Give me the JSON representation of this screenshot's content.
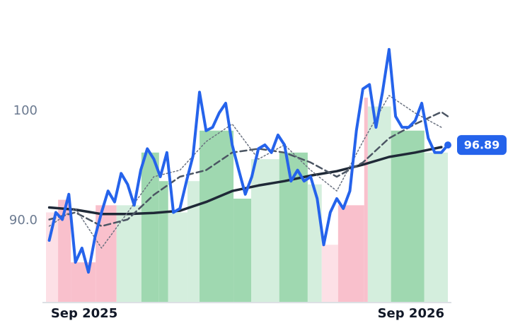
{
  "chart_data": {
    "type": "line",
    "xlim": [
      2025.55,
      2026.78
    ],
    "ylim": [
      82.6,
      110.1
    ],
    "xticks": [
      {
        "value": 2025.667,
        "label": "Sep 2025"
      },
      {
        "value": 2026.667,
        "label": "Sep 2026"
      }
    ],
    "yticks": [
      {
        "value": 90,
        "label": "90.0"
      },
      100
    ],
    "bands": {
      "bins": [
        2025.55,
        2025.587,
        2025.626,
        2025.702,
        2025.766,
        2025.842,
        2025.896,
        2025.924,
        2025.983,
        2026.02,
        2026.124,
        2026.178,
        2026.264,
        2026.351,
        2026.394,
        2026.444,
        2026.524,
        2026.535,
        2026.606,
        2026.708,
        2026.78
      ],
      "values": [
        90.75,
        91.9,
        86.2,
        91.4,
        91.4,
        96.2,
        93.6,
        90.75,
        93.6,
        98.2,
        92.0,
        95.6,
        96.2,
        93.3,
        87.8,
        91.4,
        101.2,
        100.4,
        98.2,
        96.2
      ],
      "colors": [
        "#fde0e6",
        "#f9c0cc",
        "#f9c0cc",
        "#f9c0cc",
        "#d4eedd",
        "#9fd8b0",
        "#9fd8b0",
        "#d4eedd",
        "#d4eedd",
        "#9fd8b0",
        "#9fd8b0",
        "#d4eedd",
        "#9fd8b0",
        "#d4eedd",
        "#fde0e6",
        "#f9c0cc",
        "#f9c0cc",
        "#d4eedd",
        "#9fd8b0",
        "#d4eedd"
      ]
    },
    "series": [
      {
        "color": "#1f2937",
        "style": "solid-thin",
        "x": [
          2025.56,
          2025.64,
          2025.72,
          2025.8,
          2025.88,
          2025.96,
          2026.04,
          2026.12,
          2026.2,
          2026.28,
          2026.36,
          2026.44,
          2026.52,
          2026.6,
          2026.68,
          2026.76
        ],
        "values": [
          91.2,
          91.0,
          90.6,
          90.6,
          90.7,
          90.9,
          91.7,
          92.7,
          93.2,
          93.6,
          94.1,
          94.5,
          95.1,
          95.8,
          96.2,
          96.7
        ]
      },
      {
        "color": "#4b5563",
        "style": "dashed",
        "x": [
          2025.56,
          2025.64,
          2025.72,
          2025.8,
          2025.88,
          2025.96,
          2026.04,
          2026.12,
          2026.2,
          2026.28,
          2026.36,
          2026.44,
          2026.52,
          2026.6,
          2026.68,
          2026.76,
          2026.78
        ],
        "values": [
          90.1,
          90.75,
          89.5,
          90.1,
          92.35,
          94.0,
          94.6,
          96.2,
          96.55,
          96.2,
          95.3,
          94.0,
          95.3,
          97.5,
          98.8,
          99.9,
          99.5
        ]
      },
      {
        "color": "#6b7280",
        "style": "dotted",
        "x": [
          2025.56,
          2025.64,
          2025.72,
          2025.8,
          2025.88,
          2025.96,
          2026.04,
          2026.12,
          2026.2,
          2026.28,
          2026.36,
          2026.44,
          2026.52,
          2026.6,
          2026.68,
          2026.76
        ],
        "values": [
          89.5,
          91.1,
          87.5,
          90.75,
          94.0,
          94.6,
          97.2,
          98.8,
          95.6,
          96.9,
          94.6,
          92.7,
          97.2,
          101.4,
          99.8,
          98.5
        ]
      },
      {
        "color": "#2563eb",
        "style": "solid",
        "last_label": true,
        "x": [
          2025.56,
          2025.58,
          2025.6,
          2025.62,
          2025.64,
          2025.66,
          2025.68,
          2025.7,
          2025.72,
          2025.74,
          2025.76,
          2025.78,
          2025.8,
          2025.82,
          2025.84,
          2025.86,
          2025.88,
          2025.9,
          2025.92,
          2025.94,
          2025.96,
          2025.98,
          2026.0,
          2026.02,
          2026.04,
          2026.06,
          2026.08,
          2026.1,
          2026.12,
          2026.14,
          2026.16,
          2026.18,
          2026.2,
          2026.22,
          2026.24,
          2026.26,
          2026.28,
          2026.3,
          2026.32,
          2026.34,
          2026.36,
          2026.38,
          2026.4,
          2026.42,
          2026.44,
          2026.46,
          2026.48,
          2026.5,
          2026.52,
          2026.54,
          2026.56,
          2026.58,
          2026.6,
          2026.62,
          2026.64,
          2026.66,
          2026.68,
          2026.7,
          2026.72,
          2026.74,
          2026.76,
          2026.78
        ],
        "values": [
          88.2,
          90.75,
          90.1,
          92.4,
          86.2,
          87.5,
          85.3,
          88.5,
          90.75,
          92.7,
          91.7,
          94.3,
          93.3,
          91.4,
          94.6,
          96.55,
          95.6,
          94.0,
          96.2,
          90.75,
          91.1,
          93.6,
          95.9,
          101.7,
          98.2,
          98.5,
          99.8,
          100.7,
          96.9,
          94.6,
          92.4,
          94.0,
          96.55,
          96.9,
          96.2,
          97.8,
          96.9,
          93.6,
          94.6,
          93.6,
          94.0,
          92.0,
          87.8,
          90.75,
          92.0,
          91.1,
          92.7,
          98.2,
          102.0,
          102.4,
          98.5,
          101.7,
          105.6,
          99.5,
          98.5,
          98.5,
          99.1,
          100.7,
          97.5,
          96.2,
          96.2,
          96.89
        ]
      }
    ]
  }
}
